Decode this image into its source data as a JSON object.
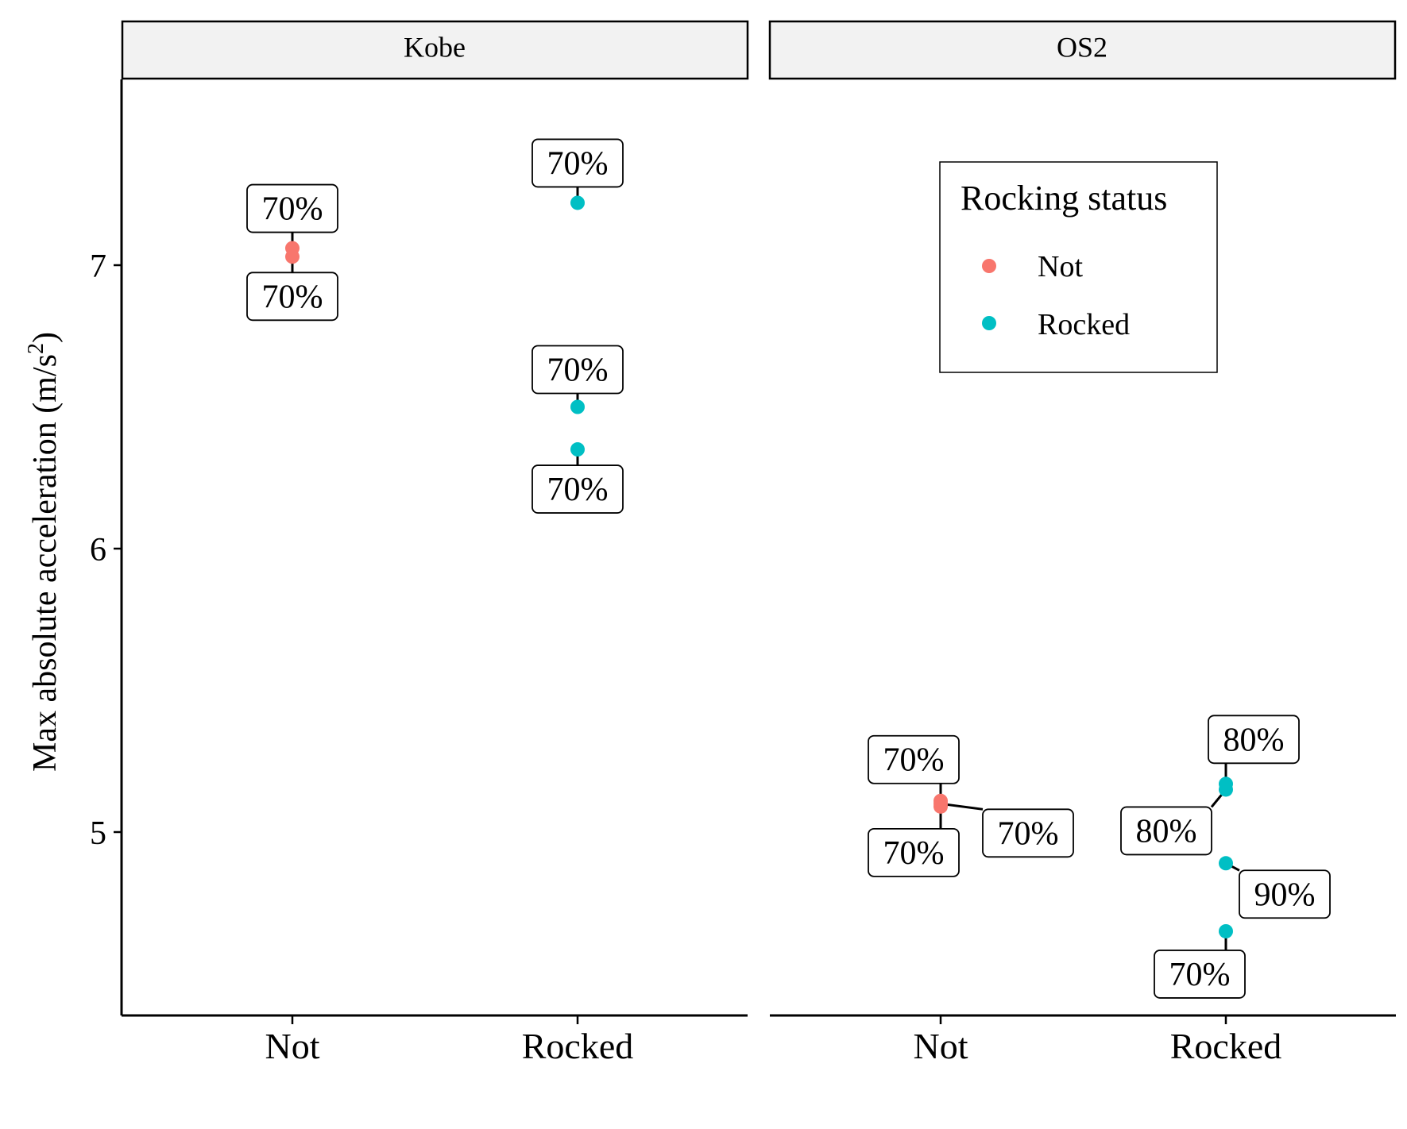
{
  "chart_data": {
    "type": "scatter",
    "ylabel": "Max absolute acceleration (m/s",
    "ylabel_sup": "2",
    "ylabel_close": ")",
    "yticks": [
      5,
      6,
      7
    ],
    "categories": [
      "Not",
      "Rocked"
    ],
    "legend": {
      "title": "Rocking status",
      "placement": "inside, upper-center of right panel",
      "entries": [
        {
          "name": "Not",
          "color": "#F8766D"
        },
        {
          "name": "Rocked",
          "color": "#00BFC4"
        }
      ]
    },
    "panels": [
      {
        "strip": "Kobe",
        "points": [
          {
            "x": "Not",
            "y": 7.06,
            "status": "Not",
            "label": "70%"
          },
          {
            "x": "Not",
            "y": 7.03,
            "status": "Not",
            "label": "70%"
          },
          {
            "x": "Rocked",
            "y": 7.22,
            "status": "Rocked",
            "label": "70%"
          },
          {
            "x": "Rocked",
            "y": 6.5,
            "status": "Rocked",
            "label": "70%"
          },
          {
            "x": "Rocked",
            "y": 6.35,
            "status": "Rocked",
            "label": "70%"
          }
        ]
      },
      {
        "strip": "OS2",
        "points": [
          {
            "x": "Not",
            "y": 5.11,
            "status": "Not",
            "label": "70%"
          },
          {
            "x": "Not",
            "y": 5.09,
            "status": "Not",
            "label": "70%"
          },
          {
            "x": "Not",
            "y": 5.1,
            "status": "Not",
            "label": "70%"
          },
          {
            "x": "Rocked",
            "y": 5.17,
            "status": "Rocked",
            "label": "80%"
          },
          {
            "x": "Rocked",
            "y": 5.15,
            "status": "Rocked",
            "label": "80%"
          },
          {
            "x": "Rocked",
            "y": 4.89,
            "status": "Rocked",
            "label": "90%"
          },
          {
            "x": "Rocked",
            "y": 4.65,
            "status": "Rocked",
            "label": "70%"
          }
        ]
      }
    ]
  }
}
